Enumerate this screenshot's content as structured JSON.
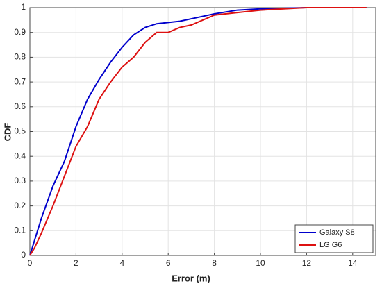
{
  "chart_data": {
    "type": "line",
    "xlabel": "Error (m)",
    "ylabel": "CDF",
    "x": [
      0,
      0.2,
      0.5,
      1,
      1.5,
      2,
      2.5,
      3,
      3.5,
      4,
      4.5,
      5,
      5.5,
      6,
      6.5,
      7,
      8,
      9,
      10,
      12,
      14.6
    ],
    "series": [
      {
        "name": "Galaxy S8",
        "color": "#0000cc",
        "values": [
          0,
          0.06,
          0.15,
          0.28,
          0.38,
          0.52,
          0.63,
          0.71,
          0.78,
          0.84,
          0.89,
          0.92,
          0.935,
          0.94,
          0.945,
          0.955,
          0.975,
          0.99,
          0.995,
          1,
          1
        ]
      },
      {
        "name": "LG G6",
        "color": "#dd1111",
        "values": [
          0,
          0.03,
          0.09,
          0.2,
          0.32,
          0.44,
          0.52,
          0.63,
          0.7,
          0.76,
          0.8,
          0.86,
          0.9,
          0.9,
          0.92,
          0.93,
          0.97,
          0.98,
          0.99,
          1,
          1
        ]
      }
    ],
    "xlim": [
      0,
      15
    ],
    "xticks": [
      0,
      2,
      4,
      6,
      8,
      10,
      12,
      14
    ],
    "ylim": [
      0,
      1
    ],
    "yticks": [
      0,
      0.1,
      0.2,
      0.3,
      0.4,
      0.5,
      0.6,
      0.7,
      0.8,
      0.9,
      1
    ],
    "grid": true,
    "legend": "lower-right"
  }
}
